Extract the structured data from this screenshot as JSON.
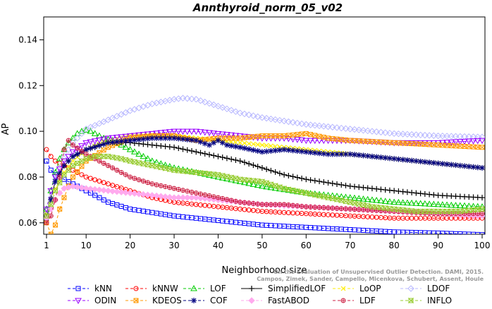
{
  "chart_data": {
    "type": "line",
    "title": "Annthyroid_norm_05_v02",
    "xlabel": "Neighborhood size",
    "ylabel": "AP",
    "xlim": [
      1,
      100
    ],
    "ylim": [
      0.055,
      0.15
    ],
    "x_ticks": [
      1,
      10,
      20,
      30,
      40,
      50,
      60,
      70,
      80,
      90,
      100
    ],
    "y_ticks": [
      0.06,
      0.08,
      0.1,
      0.12,
      0.14
    ],
    "x_tick_labels": [
      "1",
      "10",
      "20",
      "30",
      "40",
      "50",
      "60",
      "70",
      "80",
      "90",
      "100"
    ],
    "y_tick_labels": [
      "0.06",
      "0.08",
      "0.10",
      "0.12",
      "0.14"
    ],
    "grid": false,
    "legend_position": "bottom",
    "watermark": "Campos, Zimek, Sander, Campello, Micenkova, Schubert, Assent, Houle",
    "watermark_line1": "On the Evaluation of Unsupervised Outlier Detection. DAMI, 2015.",
    "series": [
      {
        "name": "kNN",
        "color": "#0000ff",
        "marker": "square",
        "line_style": "dashed",
        "x": [
          1,
          2,
          3,
          5,
          7,
          10,
          15,
          20,
          30,
          40,
          50,
          60,
          70,
          80,
          90,
          100
        ],
        "y": [
          0.087,
          0.083,
          0.081,
          0.079,
          0.077,
          0.074,
          0.069,
          0.066,
          0.063,
          0.061,
          0.059,
          0.058,
          0.057,
          0.056,
          0.0555,
          0.0548
        ]
      },
      {
        "name": "kNNW",
        "color": "#ff0000",
        "marker": "circle",
        "line_style": "dashed",
        "x": [
          1,
          2,
          3,
          5,
          7,
          10,
          15,
          20,
          25,
          30,
          40,
          50,
          60,
          70,
          80,
          90,
          100
        ],
        "y": [
          0.092,
          0.089,
          0.087,
          0.085,
          0.083,
          0.08,
          0.077,
          0.074,
          0.071,
          0.069,
          0.067,
          0.065,
          0.064,
          0.063,
          0.062,
          0.062,
          0.062
        ]
      },
      {
        "name": "LOF",
        "color": "#00cc00",
        "marker": "triangle",
        "line_style": "dashed",
        "x": [
          1,
          2,
          3,
          4,
          5,
          6,
          7,
          8,
          9,
          10,
          11,
          12,
          14,
          16,
          18,
          20,
          25,
          30,
          35,
          40,
          50,
          60,
          70,
          80,
          90,
          100
        ],
        "y": [
          0.066,
          0.074,
          0.082,
          0.088,
          0.092,
          0.095,
          0.097,
          0.099,
          0.1,
          0.1005,
          0.1,
          0.099,
          0.097,
          0.096,
          0.094,
          0.092,
          0.087,
          0.084,
          0.082,
          0.08,
          0.076,
          0.073,
          0.071,
          0.069,
          0.068,
          0.067
        ]
      },
      {
        "name": "SimplifiedLOF",
        "color": "#000000",
        "marker": "plus",
        "line_style": "solid",
        "x": [
          1,
          2,
          3,
          5,
          7,
          10,
          12,
          15,
          18,
          20,
          25,
          30,
          35,
          40,
          45,
          50,
          55,
          60,
          70,
          80,
          90,
          100
        ],
        "y": [
          0.064,
          0.071,
          0.078,
          0.085,
          0.089,
          0.092,
          0.093,
          0.095,
          0.095,
          0.095,
          0.094,
          0.093,
          0.091,
          0.089,
          0.087,
          0.084,
          0.081,
          0.079,
          0.076,
          0.074,
          0.072,
          0.071
        ]
      },
      {
        "name": "LoOP",
        "color": "#ffee00",
        "marker": "x",
        "line_style": "dashed",
        "x": [
          1,
          2,
          3,
          5,
          7,
          10,
          15,
          20,
          25,
          30,
          35,
          40,
          45,
          50,
          55,
          60,
          65,
          70,
          75,
          80,
          85,
          90,
          95,
          100
        ],
        "y": [
          0.064,
          0.07,
          0.075,
          0.082,
          0.087,
          0.092,
          0.096,
          0.098,
          0.0985,
          0.098,
          0.097,
          0.096,
          0.095,
          0.094,
          0.093,
          0.092,
          0.091,
          0.09,
          0.089,
          0.088,
          0.087,
          0.086,
          0.085,
          0.084
        ]
      },
      {
        "name": "LDOF",
        "color": "#b8b8ff",
        "marker": "diamond",
        "line_style": "dashed",
        "x": [
          1,
          2,
          3,
          5,
          7,
          10,
          15,
          20,
          25,
          30,
          32,
          35,
          40,
          45,
          50,
          60,
          70,
          80,
          90,
          100
        ],
        "y": [
          0.064,
          0.071,
          0.079,
          0.089,
          0.095,
          0.101,
          0.105,
          0.109,
          0.112,
          0.114,
          0.1145,
          0.114,
          0.111,
          0.108,
          0.106,
          0.103,
          0.101,
          0.099,
          0.098,
          0.0975
        ]
      },
      {
        "name": "ODIN",
        "color": "#9900ff",
        "marker": "triangle-down",
        "line_style": "dashed",
        "x": [
          1,
          2,
          3,
          5,
          7,
          10,
          15,
          20,
          25,
          30,
          35,
          40,
          45,
          50,
          55,
          60,
          70,
          80,
          90,
          100
        ],
        "y": [
          0.066,
          0.074,
          0.08,
          0.087,
          0.091,
          0.095,
          0.097,
          0.098,
          0.099,
          0.1,
          0.1,
          0.099,
          0.098,
          0.097,
          0.097,
          0.096,
          0.096,
          0.095,
          0.095,
          0.096
        ]
      },
      {
        "name": "KDEOS",
        "color": "#ff9900",
        "marker": "square-x",
        "line_style": "dashed",
        "x": [
          1,
          2,
          3,
          4,
          5,
          6,
          7,
          10,
          15,
          20,
          25,
          30,
          35,
          40,
          45,
          50,
          55,
          60,
          65,
          70,
          80,
          90,
          100
        ],
        "y": [
          0.06,
          0.055,
          0.059,
          0.066,
          0.071,
          0.076,
          0.08,
          0.087,
          0.093,
          0.097,
          0.098,
          0.098,
          0.096,
          0.097,
          0.097,
          0.098,
          0.098,
          0.099,
          0.097,
          0.096,
          0.095,
          0.094,
          0.093
        ]
      },
      {
        "name": "COF",
        "color": "#000080",
        "marker": "star",
        "line_style": "dashed",
        "x": [
          1,
          2,
          3,
          5,
          7,
          10,
          15,
          20,
          25,
          30,
          35,
          38,
          40,
          42,
          45,
          50,
          55,
          60,
          65,
          70,
          75,
          80,
          85,
          90,
          95,
          100
        ],
        "y": [
          0.062,
          0.07,
          0.078,
          0.085,
          0.089,
          0.092,
          0.095,
          0.096,
          0.097,
          0.097,
          0.096,
          0.094,
          0.096,
          0.094,
          0.093,
          0.091,
          0.092,
          0.091,
          0.09,
          0.09,
          0.089,
          0.088,
          0.087,
          0.086,
          0.085,
          0.084
        ]
      },
      {
        "name": "FastABOD",
        "color": "#ffaaee",
        "marker": "diamond-filled",
        "line_style": "dashed",
        "x": [
          1,
          2,
          3,
          4,
          5,
          7,
          10,
          15,
          20,
          25,
          30,
          35,
          40,
          50,
          60,
          70,
          80,
          90,
          100
        ],
        "y": [
          0.062,
          0.066,
          0.07,
          0.073,
          0.075,
          0.076,
          0.075,
          0.074,
          0.073,
          0.072,
          0.071,
          0.071,
          0.07,
          0.068,
          0.067,
          0.066,
          0.065,
          0.064,
          0.063
        ]
      },
      {
        "name": "LDF",
        "color": "#cc2244",
        "marker": "circle-plus",
        "line_style": "dashed",
        "x": [
          1,
          2,
          3,
          4,
          5,
          6,
          7,
          10,
          15,
          20,
          25,
          30,
          35,
          40,
          45,
          50,
          55,
          60,
          70,
          80,
          90,
          100
        ],
        "y": [
          0.06,
          0.063,
          0.07,
          0.08,
          0.092,
          0.096,
          0.094,
          0.09,
          0.085,
          0.08,
          0.077,
          0.075,
          0.073,
          0.071,
          0.069,
          0.068,
          0.068,
          0.067,
          0.066,
          0.065,
          0.064,
          0.064
        ]
      },
      {
        "name": "INFLO",
        "color": "#99cc33",
        "marker": "hourglass",
        "line_style": "dashed",
        "x": [
          1,
          2,
          3,
          5,
          7,
          10,
          12,
          15,
          18,
          20,
          25,
          30,
          35,
          40,
          45,
          50,
          55,
          60,
          65,
          70,
          75,
          80,
          85,
          90,
          95,
          100
        ],
        "y": [
          0.063,
          0.068,
          0.074,
          0.081,
          0.085,
          0.088,
          0.089,
          0.089,
          0.088,
          0.087,
          0.085,
          0.083,
          0.082,
          0.081,
          0.079,
          0.078,
          0.075,
          0.073,
          0.071,
          0.069,
          0.067,
          0.066,
          0.065,
          0.065,
          0.065,
          0.066
        ]
      }
    ]
  }
}
